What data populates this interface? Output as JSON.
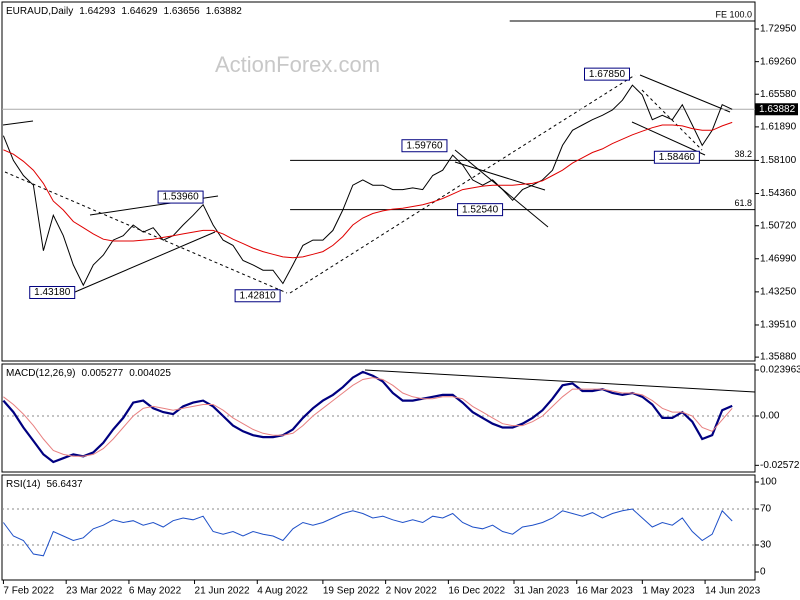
{
  "chart_data": {
    "type": "line",
    "xlim": [
      "2022-02-06",
      "2023-07-19"
    ],
    "xticks": [
      {
        "value": "2022-02-07",
        "label": "7 Feb 2022"
      },
      {
        "value": "2022-03-23",
        "label": "23 Mar 2022"
      },
      {
        "value": "2022-05-06",
        "label": "6 May 2022"
      },
      {
        "value": "2022-06-21",
        "label": "21 Jun 2022"
      },
      {
        "value": "2022-08-04",
        "label": "4 Aug 2022"
      },
      {
        "value": "2022-09-19",
        "label": "19 Sep 2022"
      },
      {
        "value": "2022-11-02",
        "label": "2 Nov 2022"
      },
      {
        "value": "2022-12-16",
        "label": "16 Dec 2022"
      },
      {
        "value": "2023-01-31",
        "label": "31 Jan 2023"
      },
      {
        "value": "2023-03-16",
        "label": "16 Mar 2023"
      },
      {
        "value": "2023-05-01",
        "label": "1 May 2023"
      },
      {
        "value": "2023-06-14",
        "label": "14 Jun 2023"
      }
    ],
    "x": [
      "2022-02-07",
      "2022-02-14",
      "2022-02-21",
      "2022-02-28",
      "2022-03-07",
      "2022-03-14",
      "2022-03-21",
      "2022-03-28",
      "2022-04-04",
      "2022-04-11",
      "2022-04-18",
      "2022-04-25",
      "2022-05-02",
      "2022-05-09",
      "2022-05-16",
      "2022-05-23",
      "2022-05-30",
      "2022-06-06",
      "2022-06-13",
      "2022-06-20",
      "2022-06-27",
      "2022-07-04",
      "2022-07-11",
      "2022-07-18",
      "2022-07-25",
      "2022-08-01",
      "2022-08-08",
      "2022-08-15",
      "2022-08-22",
      "2022-08-29",
      "2022-09-05",
      "2022-09-12",
      "2022-09-19",
      "2022-09-26",
      "2022-10-03",
      "2022-10-10",
      "2022-10-17",
      "2022-10-24",
      "2022-10-31",
      "2022-11-07",
      "2022-11-14",
      "2022-11-21",
      "2022-11-28",
      "2022-12-05",
      "2022-12-12",
      "2022-12-19",
      "2022-12-26",
      "2023-01-02",
      "2023-01-09",
      "2023-01-16",
      "2023-01-23",
      "2023-01-30",
      "2023-02-06",
      "2023-02-13",
      "2023-02-20",
      "2023-02-27",
      "2023-03-06",
      "2023-03-13",
      "2023-03-20",
      "2023-03-27",
      "2023-04-03",
      "2023-04-10",
      "2023-04-17",
      "2023-04-24",
      "2023-05-01",
      "2023-05-08",
      "2023-05-15",
      "2023-05-22",
      "2023-05-29",
      "2023-06-05",
      "2023-06-12",
      "2023-06-19",
      "2023-06-26",
      "2023-07-03"
    ],
    "panes": [
      {
        "title": "EURAUD,Daily",
        "ohlc": [
          1.64293,
          1.64629,
          1.63656,
          1.63882
        ],
        "watermark": "ActionForex.com",
        "ylim": [
          1.3544,
          1.76
        ],
        "grid": false,
        "yticks": [
          {
            "value": 1.7295,
            "label": "1.72950"
          },
          {
            "value": 1.6926,
            "label": "1.69260"
          },
          {
            "value": 1.6558,
            "label": "1.65580"
          },
          {
            "value": 1.6189,
            "label": "1.61890"
          },
          {
            "value": 1.581,
            "label": "1.58100"
          },
          {
            "value": 1.5436,
            "label": "1.54360"
          },
          {
            "value": 1.5072,
            "label": "1.50720"
          },
          {
            "value": 1.4699,
            "label": "1.46990"
          },
          {
            "value": 1.4325,
            "label": "1.43250"
          },
          {
            "value": 1.3951,
            "label": "1.39510"
          },
          {
            "value": 1.3588,
            "label": "1.35880"
          }
        ],
        "series": [
          {
            "color": "#000000",
            "width": 1,
            "values": [
              1.609,
              1.581,
              1.564,
              1.553,
              1.479,
              1.519,
              1.496,
              1.463,
              1.44,
              1.463,
              1.474,
              1.491,
              1.496,
              1.508,
              1.5,
              1.505,
              1.491,
              1.496,
              1.508,
              1.519,
              1.531,
              1.508,
              1.491,
              1.485,
              1.468,
              1.463,
              1.457,
              1.457,
              1.442,
              1.463,
              1.485,
              1.491,
              1.491,
              1.502,
              1.525,
              1.553,
              1.559,
              1.553,
              1.553,
              1.548,
              1.548,
              1.55,
              1.548,
              1.564,
              1.57,
              1.587,
              1.576,
              1.559,
              1.553,
              1.559,
              1.548,
              1.536,
              1.548,
              1.553,
              1.559,
              1.57,
              1.598,
              1.615,
              1.621,
              1.627,
              1.632,
              1.638,
              1.649,
              1.666,
              1.655,
              1.627,
              1.632,
              1.627,
              1.644,
              1.621,
              1.598,
              1.615,
              1.644,
              1.63882
            ]
          },
          {
            "color": "#e00000",
            "width": 1,
            "values": [
              1.593,
              1.588,
              1.58,
              1.57,
              1.555,
              1.535,
              1.525,
              1.512,
              1.505,
              1.498,
              1.492,
              1.49,
              1.49,
              1.49,
              1.491,
              1.492,
              1.494,
              1.496,
              1.498,
              1.5,
              1.502,
              1.502,
              1.498,
              1.492,
              1.487,
              1.482,
              1.478,
              1.475,
              1.472,
              1.471,
              1.472,
              1.475,
              1.478,
              1.485,
              1.495,
              1.508,
              1.516,
              1.521,
              1.524,
              1.526,
              1.527,
              1.529,
              1.531,
              1.534,
              1.538,
              1.543,
              1.548,
              1.55,
              1.552,
              1.553,
              1.553,
              1.553,
              1.554,
              1.555,
              1.558,
              1.564,
              1.57,
              1.578,
              1.584,
              1.59,
              1.594,
              1.6,
              1.605,
              1.61,
              1.614,
              1.618,
              1.621,
              1.621,
              1.62,
              1.617,
              1.615,
              1.615,
              1.62,
              1.624
            ]
          }
        ],
        "annotations": [
          {
            "label": "1.43180",
            "value": 1.4318,
            "x": "2022-03-29"
          },
          {
            "label": "1.53960",
            "value": 1.5396,
            "x": "2022-06-27"
          },
          {
            "label": "1.42810",
            "value": 1.4281,
            "x": "2022-08-20"
          },
          {
            "label": "1.59760",
            "value": 1.5976,
            "x": "2022-12-15"
          },
          {
            "label": "1.52540",
            "value": 1.5254,
            "x": "2023-01-23"
          },
          {
            "label": "1.67850",
            "value": 1.6785,
            "x": "2023-04-22"
          },
          {
            "label": "1.58460",
            "value": 1.5846,
            "x": "2023-06-10"
          }
        ],
        "levels": [
          {
            "label": "FE 100.0",
            "value": 1.7385,
            "from": "2023-01-28"
          },
          {
            "label": "38.2",
            "value": 1.581,
            "from": "2022-08-27"
          },
          {
            "label": "61.8",
            "value": 1.5254,
            "from": "2022-08-27"
          }
        ]
      },
      {
        "title": "MACD(12,26,9)",
        "ylim": [
          -0.0292,
          0.0271
        ],
        "grid": true,
        "yticks": [
          0.023963,
          {
            "value": 0,
            "label": "0.00"
          },
          -0.025726
        ],
        "series": [
          {
            "color": "#000080",
            "width": 2.2,
            "values": [
              0.008,
              0.002,
              -0.006,
              -0.013,
              -0.02,
              -0.024,
              -0.022,
              -0.02,
              -0.021,
              -0.019,
              -0.014,
              -0.007,
              -0.001,
              0.007,
              0.008,
              0.004,
              0.002,
              0.001,
              0.005,
              0.007,
              0.008,
              0.005,
              0,
              -0.005,
              -0.008,
              -0.01,
              -0.011,
              -0.011,
              -0.01,
              -0.007,
              -0.001,
              0.004,
              0.008,
              0.011,
              0.015,
              0.02,
              0.023,
              0.021,
              0.018,
              0.012,
              0.008,
              0.008,
              0.009,
              0.01,
              0.011,
              0.011,
              0.007,
              0.002,
              -0.001,
              -0.004,
              -0.006,
              -0.006,
              -0.004,
              -0.001,
              0.003,
              0.009,
              0.016,
              0.017,
              0.013,
              0.013,
              0.014,
              0.012,
              0.011,
              0.012,
              0.01,
              0.006,
              -0.001,
              -0.001,
              0.002,
              -0.003,
              -0.012,
              -0.01,
              0.003,
              0.005277
            ]
          },
          {
            "color": "#e88080",
            "width": 1,
            "values": [
              0.01,
              0.006,
              0.001,
              -0.005,
              -0.012,
              -0.018,
              -0.02,
              -0.021,
              -0.021,
              -0.02,
              -0.017,
              -0.012,
              -0.006,
              0,
              0.004,
              0.005,
              0.004,
              0.003,
              0.004,
              0.005,
              0.006,
              0.006,
              0.003,
              -0.001,
              -0.004,
              -0.007,
              -0.009,
              -0.01,
              -0.01,
              -0.009,
              -0.005,
              0,
              0.004,
              0.008,
              0.012,
              0.016,
              0.019,
              0.02,
              0.019,
              0.016,
              0.012,
              0.01,
              0.009,
              0.009,
              0.01,
              0.01,
              0.009,
              0.005,
              0.002,
              -0.001,
              -0.004,
              -0.005,
              -0.005,
              -0.003,
              0,
              0.005,
              0.01,
              0.014,
              0.014,
              0.014,
              0.014,
              0.013,
              0.012,
              0.012,
              0.011,
              0.008,
              0.004,
              0.002,
              0.002,
              0,
              -0.006,
              -0.008,
              -0.002,
              0.004025
            ]
          }
        ]
      },
      {
        "title": "RSI(14)",
        "ylim": [
          -8.9,
          107.8
        ],
        "grid": true,
        "yticks": [
          100,
          70,
          30,
          0
        ],
        "series": [
          {
            "color": "#1e50c8",
            "width": 1,
            "values": [
              55,
              40,
              35,
              20,
              18,
              45,
              40,
              35,
              38,
              48,
              52,
              58,
              55,
              57,
              52,
              55,
              50,
              57,
              60,
              58,
              62,
              45,
              42,
              45,
              40,
              45,
              42,
              40,
              35,
              48,
              55,
              52,
              55,
              60,
              65,
              68,
              65,
              60,
              62,
              58,
              55,
              58,
              55,
              62,
              60,
              65,
              55,
              50,
              48,
              52,
              45,
              42,
              50,
              52,
              55,
              60,
              68,
              65,
              62,
              66,
              60,
              65,
              68,
              70,
              60,
              50,
              55,
              52,
              60,
              45,
              35,
              42,
              68,
              56.6437
            ]
          }
        ]
      }
    ]
  }
}
